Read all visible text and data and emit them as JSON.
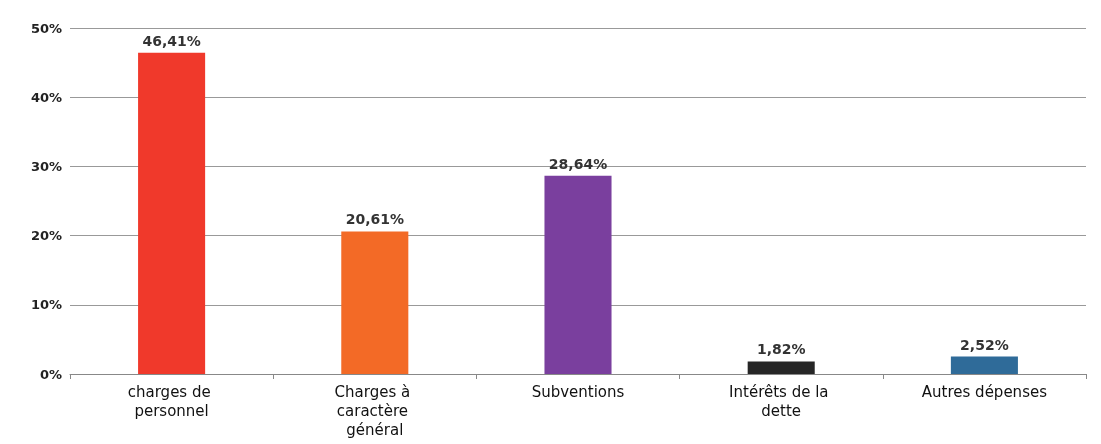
{
  "chart_data": {
    "type": "bar",
    "categories": [
      "charges de personnel",
      "Charges à caractère général",
      "Subventions",
      "Intérêts de la dette",
      "Autres dépenses"
    ],
    "values": [
      46.41,
      20.61,
      28.64,
      1.82,
      2.52
    ],
    "colors": [
      "#f0392b",
      "#f36a26",
      "#7a3f9e",
      "#262626",
      "#2f6b99"
    ],
    "value_labels": [
      "46,41%",
      "20,61%",
      "28,64%",
      "1,82%",
      "2,52%"
    ],
    "ylim": [
      0,
      50
    ],
    "yticks": [
      {
        "value": 0,
        "label": "0%"
      },
      {
        "value": 10,
        "label": "10%"
      },
      {
        "value": 20,
        "label": "20%"
      },
      {
        "value": 30,
        "label": "30%"
      },
      {
        "value": 40,
        "label": "40%"
      },
      {
        "value": 50,
        "label": "50%"
      }
    ],
    "grid": "y"
  }
}
